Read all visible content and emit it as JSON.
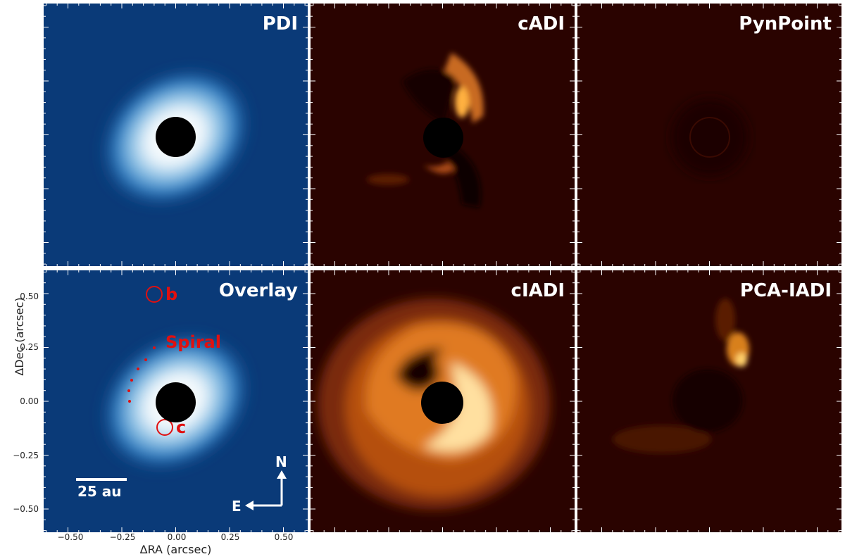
{
  "panels": {
    "pdi": {
      "title": "PDI"
    },
    "cadi": {
      "title": "cADI"
    },
    "pynpoint": {
      "title": "PynPoint"
    },
    "overlay": {
      "title": "Overlay"
    },
    "cladi": {
      "title": "cIADI"
    },
    "pcaladi": {
      "title": "PCA-IADI"
    }
  },
  "axes": {
    "xlabel": "ΔRA (arcsec)",
    "ylabel": "ΔDec (arcsec)",
    "xticks": [
      "−0.50",
      "−0.25",
      "0.00",
      "0.25",
      "0.50"
    ],
    "yticks": [
      "0.50",
      "0.25",
      "0.00",
      "−0.25",
      "−0.50"
    ]
  },
  "annotations": {
    "planet_b": "b",
    "planet_c": "c",
    "spiral": "Spiral",
    "scale_bar": "25 au",
    "north": "N",
    "east": "E"
  },
  "colors": {
    "blue_background": "#0a3a78",
    "red_background": "#2a0300",
    "annotation": "#e01010"
  }
}
